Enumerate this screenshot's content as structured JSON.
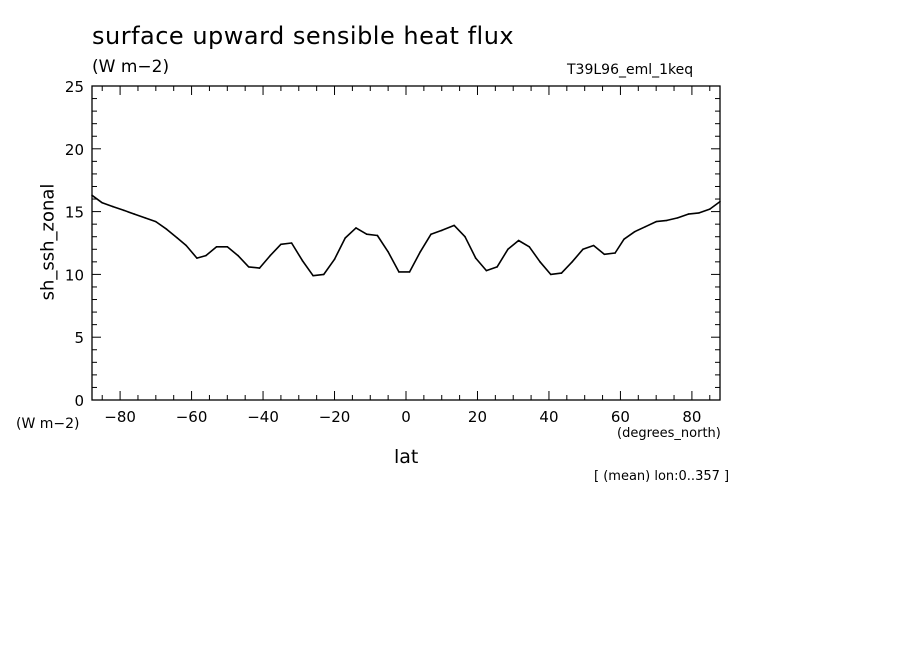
{
  "header": {
    "title": "surface upward sensible heat flux",
    "units": "(W m−2)",
    "run_id": "T39L96_eml_1keq"
  },
  "footer": {
    "y_units": "(W m−2)",
    "x_units": "(degrees_north)",
    "averaging": "[ (mean) lon:0..357 ]"
  },
  "chart_data": {
    "type": "line",
    "xlabel": "lat",
    "ylabel": "sh_ssh_zonal",
    "xlim": [
      -87.86,
      87.86
    ],
    "ylim": [
      0,
      25
    ],
    "xticks": [
      -80,
      -60,
      -40,
      -20,
      0,
      20,
      40,
      60,
      80
    ],
    "xtick_labels": [
      "−80",
      "−60",
      "−40",
      "−20",
      "0",
      "20",
      "40",
      "60",
      "80"
    ],
    "yticks": [
      0,
      5,
      10,
      15,
      20,
      25
    ],
    "ytick_labels": [
      "0",
      "5",
      "10",
      "15",
      "20",
      "25"
    ],
    "grid": false,
    "series": [
      {
        "x": [
          -87.86,
          -85.0,
          -82.0,
          -79.0,
          -76.0,
          -73.0,
          -70.0,
          -67.0,
          -64.0,
          -61.5,
          -58.5,
          -56.0,
          -53.0,
          -50.0,
          -47.0,
          -44.0,
          -41.0,
          -38.0,
          -35.0,
          -32.0,
          -29.0,
          -26.0,
          -23.0,
          -20.0,
          -17.0,
          -14.0,
          -11.0,
          -8.0,
          -5.0,
          -2.0,
          1.0,
          4.0,
          7.0,
          10.0,
          13.5,
          16.5,
          19.5,
          22.5,
          25.5,
          28.5,
          31.5,
          34.5,
          37.5,
          40.5,
          43.5,
          46.5,
          49.5,
          52.5,
          55.5,
          58.5,
          61.0,
          64.0,
          67.0,
          70.0,
          73.0,
          76.0,
          79.0,
          82.0,
          85.0,
          87.86
        ],
        "y": [
          16.3,
          15.7,
          15.4,
          15.1,
          14.8,
          14.5,
          14.2,
          13.6,
          12.9,
          12.3,
          11.3,
          11.5,
          12.2,
          12.2,
          11.5,
          10.6,
          10.5,
          11.5,
          12.4,
          12.5,
          11.1,
          9.9,
          10.0,
          11.2,
          12.9,
          13.7,
          13.2,
          13.1,
          11.8,
          10.2,
          10.2,
          11.8,
          13.2,
          13.5,
          13.9,
          13.0,
          11.3,
          10.3,
          10.6,
          12.0,
          12.7,
          12.2,
          11.0,
          10.0,
          10.1,
          11.0,
          12.0,
          12.3,
          11.6,
          11.7,
          12.8,
          13.4,
          13.8,
          14.2,
          14.3,
          14.5,
          14.8,
          14.9,
          15.2,
          15.8
        ]
      }
    ]
  }
}
